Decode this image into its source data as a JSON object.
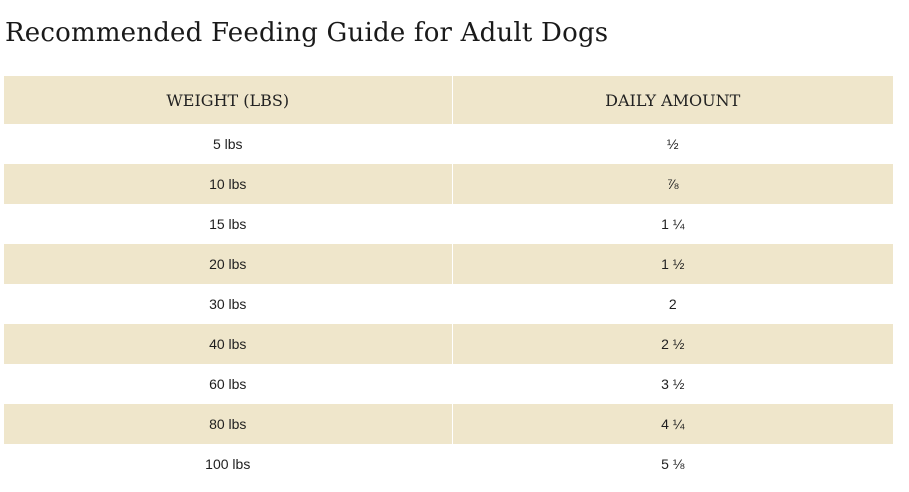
{
  "title": "Recommended Feeding Guide for Adult Dogs",
  "table": {
    "headers": [
      "WEIGHT (LBS)",
      "DAILY AMOUNT"
    ],
    "rows": [
      {
        "weight": "5 lbs",
        "amount": "½"
      },
      {
        "weight": "10 lbs",
        "amount": "⅞"
      },
      {
        "weight": "15 lbs",
        "amount": "1 ¼"
      },
      {
        "weight": "20 lbs",
        "amount": "1 ½"
      },
      {
        "weight": "30 lbs",
        "amount": "2"
      },
      {
        "weight": "40 lbs",
        "amount": "2 ½"
      },
      {
        "weight": "60 lbs",
        "amount": "3 ½"
      },
      {
        "weight": "80 lbs",
        "amount": "4 ¼"
      },
      {
        "weight": "100 lbs",
        "amount": "5 ⅛"
      }
    ]
  },
  "colors": {
    "band": "#efe6cb",
    "text": "#1f1f1f",
    "background": "#ffffff"
  }
}
